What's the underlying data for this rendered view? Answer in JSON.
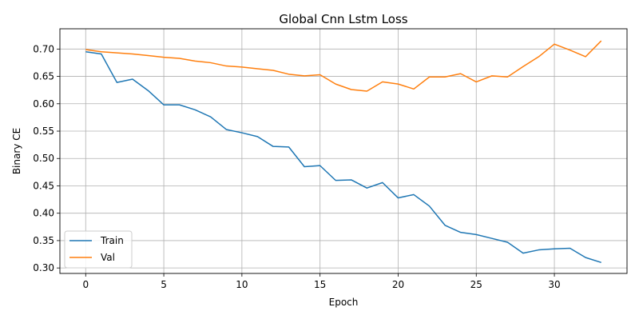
{
  "chart_data": {
    "type": "line",
    "title": "Global Cnn Lstm Loss",
    "xlabel": "Epoch",
    "ylabel": "Binary CE",
    "xlim": [
      -1.65,
      34.65
    ],
    "ylim": [
      0.29,
      0.737
    ],
    "xticks": [
      0,
      5,
      10,
      15,
      20,
      25,
      30
    ],
    "yticks": [
      0.3,
      0.35,
      0.4,
      0.45,
      0.5,
      0.55,
      0.6,
      0.65,
      0.7
    ],
    "grid": true,
    "legend_position": "bottom-left",
    "x": [
      0,
      1,
      2,
      3,
      4,
      5,
      6,
      7,
      8,
      9,
      10,
      11,
      12,
      13,
      14,
      15,
      16,
      17,
      18,
      19,
      20,
      21,
      22,
      23,
      24,
      25,
      26,
      27,
      28,
      29,
      30,
      31,
      32,
      33
    ],
    "series": [
      {
        "name": "Train",
        "color": "#1f77b4",
        "values": [
          0.695,
          0.691,
          0.639,
          0.645,
          0.624,
          0.598,
          0.598,
          0.589,
          0.576,
          0.553,
          0.547,
          0.54,
          0.522,
          0.521,
          0.485,
          0.487,
          0.46,
          0.461,
          0.446,
          0.456,
          0.428,
          0.434,
          0.413,
          0.378,
          0.365,
          0.361,
          0.354,
          0.347,
          0.327,
          0.333,
          0.335,
          0.336,
          0.319,
          0.31
        ]
      },
      {
        "name": "Val",
        "color": "#ff7f0e",
        "values": [
          0.699,
          0.695,
          0.693,
          0.691,
          0.688,
          0.685,
          0.683,
          0.678,
          0.675,
          0.669,
          0.667,
          0.664,
          0.661,
          0.654,
          0.651,
          0.653,
          0.636,
          0.626,
          0.623,
          0.64,
          0.636,
          0.627,
          0.649,
          0.649,
          0.655,
          0.64,
          0.651,
          0.649,
          0.668,
          0.686,
          0.709,
          0.698,
          0.686,
          0.715
        ]
      }
    ]
  }
}
